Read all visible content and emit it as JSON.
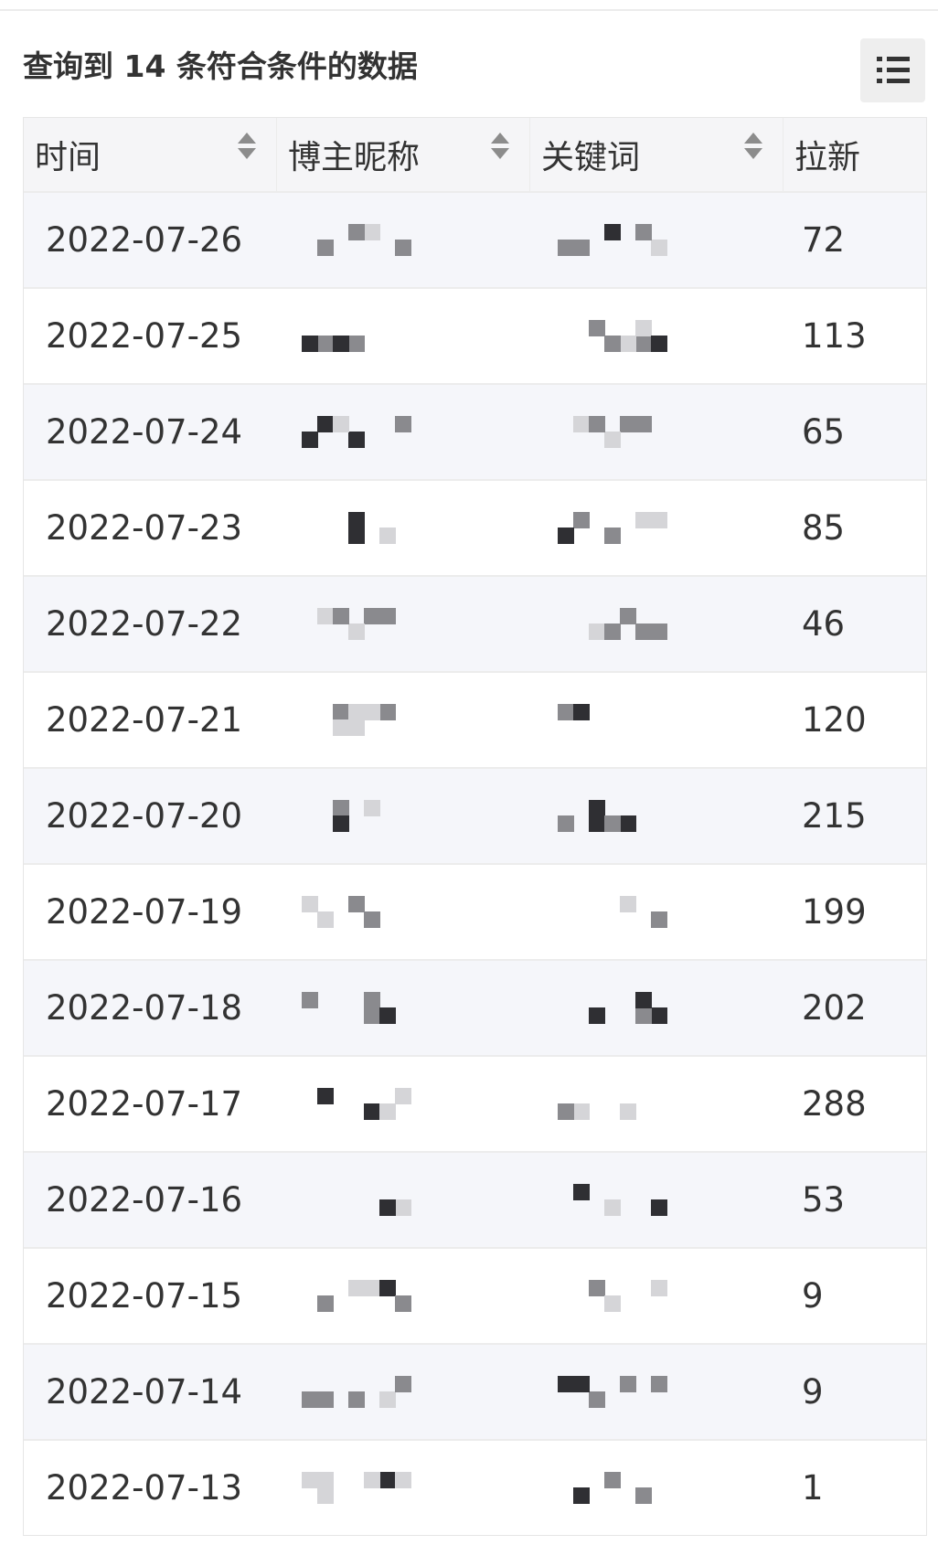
{
  "header": {
    "title": "查询到 14 条符合条件的数据",
    "menu_icon": "list-icon"
  },
  "table": {
    "columns": [
      {
        "label": "时间",
        "sortable": true
      },
      {
        "label": "博主昵称",
        "sortable": true
      },
      {
        "label": "关键词",
        "sortable": true
      },
      {
        "label": "拉新",
        "sortable": false
      }
    ],
    "rows": [
      {
        "date": "2022-07-26",
        "blogger": "",
        "keyword": "",
        "new_users": "72"
      },
      {
        "date": "2022-07-25",
        "blogger": "",
        "keyword": "",
        "new_users": "113"
      },
      {
        "date": "2022-07-24",
        "blogger": "",
        "keyword": "",
        "new_users": "65"
      },
      {
        "date": "2022-07-23",
        "blogger": "",
        "keyword": "",
        "new_users": "85"
      },
      {
        "date": "2022-07-22",
        "blogger": "",
        "keyword": "",
        "new_users": "46"
      },
      {
        "date": "2022-07-21",
        "blogger": "",
        "keyword": "",
        "new_users": "120"
      },
      {
        "date": "2022-07-20",
        "blogger": "",
        "keyword": "",
        "new_users": "215"
      },
      {
        "date": "2022-07-19",
        "blogger": "",
        "keyword": "",
        "new_users": "199"
      },
      {
        "date": "2022-07-18",
        "blogger": "",
        "keyword": "",
        "new_users": "202"
      },
      {
        "date": "2022-07-17",
        "blogger": "",
        "keyword": "",
        "new_users": "288"
      },
      {
        "date": "2022-07-16",
        "blogger": "",
        "keyword": "",
        "new_users": "53"
      },
      {
        "date": "2022-07-15",
        "blogger": "",
        "keyword": "",
        "new_users": "9"
      },
      {
        "date": "2022-07-14",
        "blogger": "",
        "keyword": "",
        "new_users": "9"
      },
      {
        "date": "2022-07-13",
        "blogger": "",
        "keyword": "",
        "new_users": "1"
      }
    ]
  },
  "colors": {
    "header_bg": "#f5f5f7",
    "stripe_bg": "#f5f6fa",
    "text": "#333333",
    "mosaic_dark": "#2f2f33",
    "mosaic_mid": "#8a8a8e",
    "mosaic_light": "#d5d5d8"
  }
}
